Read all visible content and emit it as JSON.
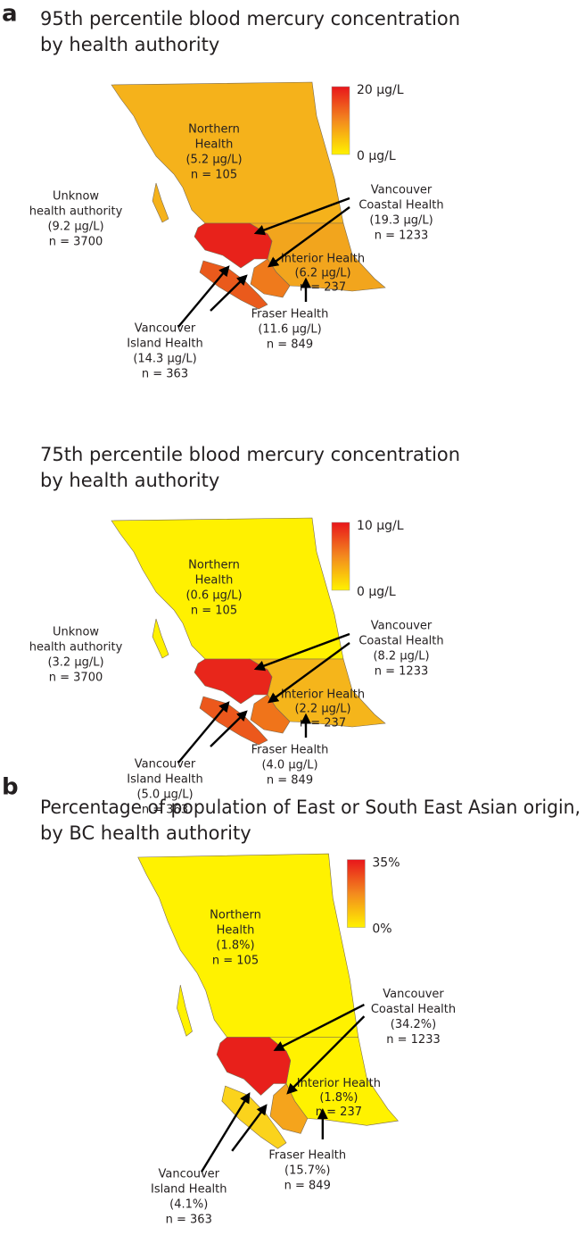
{
  "panel_labels": [
    "a",
    "b"
  ],
  "panels": [
    {
      "title": [
        "95th percentile blood mercury concentration",
        "by health authority"
      ],
      "legend": {
        "max": "20 µg/L",
        "min": "0 µg/L"
      },
      "regions": {
        "northern": [
          "Northern",
          "Health",
          "(5.2 µg/L)",
          "n = 105"
        ],
        "unknown": [
          "Unknow",
          "health authority",
          "(9.2 µg/L)",
          "n = 3700"
        ],
        "vancouver_coastal": [
          "Vancouver",
          "Coastal Health",
          "(19.3 µg/L)",
          "n = 1233"
        ],
        "interior": [
          "Interior Health",
          "(6.2 µg/L)",
          "n = 237"
        ],
        "vancouver_island": [
          "Vancouver",
          "Island Health",
          "(14.3 µg/L)",
          "n = 363"
        ],
        "fraser": [
          "Fraser Health",
          "(11.6 µg/L)",
          "n = 849"
        ]
      }
    },
    {
      "title": [
        "75th percentile blood mercury concentration",
        "by health authority"
      ],
      "legend": {
        "max": "10 µg/L",
        "min": "0 µg/L"
      },
      "regions": {
        "northern": [
          "Northern",
          "Health",
          "(0.6 µg/L)",
          "n = 105"
        ],
        "unknown": [
          "Unknow",
          "health authority",
          "(3.2 µg/L)",
          "n = 3700"
        ],
        "vancouver_coastal": [
          "Vancouver",
          "Coastal Health",
          "(8.2 µg/L)",
          "n = 1233"
        ],
        "interior": [
          "Interior Health",
          "(2.2 µg/L)",
          "n = 237"
        ],
        "vancouver_island": [
          "Vancouver",
          "Island Health",
          "(5.0 µg/L)",
          "n = 363"
        ],
        "fraser": [
          "Fraser Health",
          "(4.0 µg/L)",
          "n = 849"
        ]
      }
    },
    {
      "title": [
        "Percentage of population of East or South East Asian origin,",
        "by BC health authority"
      ],
      "legend": {
        "max": "35%",
        "min": "0%"
      },
      "regions": {
        "northern": [
          "Northern",
          "Health",
          "(1.8%)",
          "n = 105"
        ],
        "vancouver_coastal": [
          "Vancouver",
          "Coastal Health",
          "(34.2%)",
          "n = 1233"
        ],
        "interior": [
          "Interior Health",
          "(1.8%)",
          "n = 237"
        ],
        "vancouver_island": [
          "Vancouver",
          "Island Health",
          "(4.1%)",
          "n = 363"
        ],
        "fraser": [
          "Fraser Health",
          "(15.7%)",
          "n = 849"
        ]
      }
    }
  ]
}
